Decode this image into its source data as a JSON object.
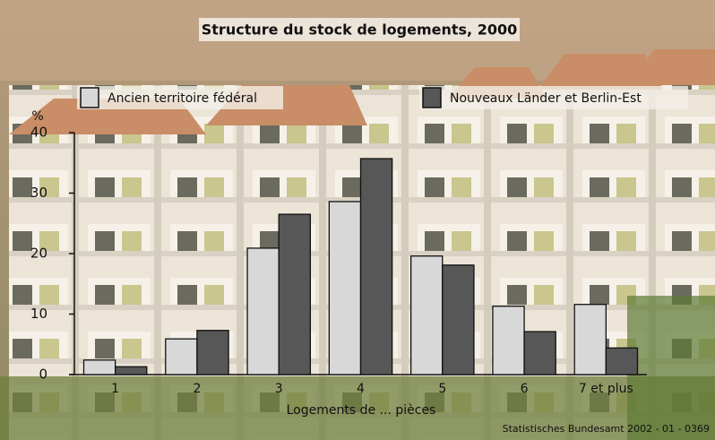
{
  "chart_data": {
    "type": "bar",
    "title": "Structure du stock de logements, 2000",
    "y_unit_label": "%",
    "x_label": "Logements de ... pièces",
    "source": "Statistisches Bundesamt 2002 - 01 - 0369",
    "categories": [
      "1",
      "2",
      "3",
      "4",
      "5",
      "6",
      "7 et plus"
    ],
    "series": [
      {
        "name": "Ancien territoire fédéral",
        "color": "#d8d8d8",
        "values": [
          2.4,
          5.9,
          20.9,
          28.6,
          19.6,
          11.3,
          11.6
        ]
      },
      {
        "name": "Nouveaux Länder et Berlin-Est",
        "color": "#575757",
        "values": [
          1.3,
          7.3,
          26.5,
          35.7,
          18.1,
          7.1,
          4.4
        ]
      }
    ],
    "ylim": [
      0,
      40
    ],
    "yticks": [
      0,
      10,
      20,
      30,
      40
    ],
    "grid": false,
    "legend": "top"
  }
}
